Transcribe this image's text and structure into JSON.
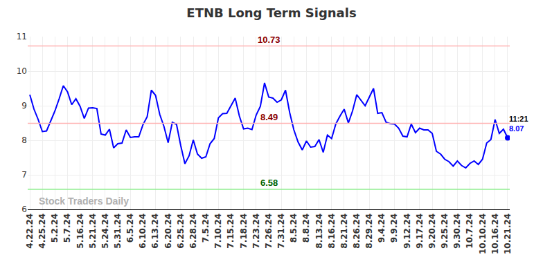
{
  "chart_data": {
    "type": "line",
    "title": "ETNB Long Term Signals",
    "color": "#0000ff",
    "grid": true,
    "ylim": [
      6,
      11
    ],
    "yticks": [
      6,
      7,
      8,
      9,
      10,
      11
    ],
    "categories": [
      "4.22.24",
      null,
      null,
      "4.25.24",
      null,
      null,
      "5.2.24",
      null,
      null,
      "5.7.24",
      null,
      null,
      "5.16.24",
      null,
      null,
      "5.21.24",
      null,
      null,
      "5.24.24",
      null,
      null,
      "5.31.24",
      null,
      null,
      "6.5.24",
      null,
      null,
      "6.10.24",
      null,
      null,
      "6.13.24",
      null,
      null,
      "6.20.24",
      null,
      null,
      "6.25.24",
      null,
      null,
      "6.28.24",
      null,
      null,
      "7.5.24",
      null,
      null,
      "7.10.24",
      null,
      null,
      "7.15.24",
      null,
      null,
      "7.18.24",
      null,
      null,
      "7.23.24",
      null,
      null,
      "7.26.24",
      null,
      null,
      "7.31.24",
      null,
      null,
      "8.5.24",
      null,
      null,
      "8.8.24",
      null,
      null,
      "8.13.24",
      null,
      null,
      "8.16.24",
      null,
      null,
      "8.21.24",
      null,
      null,
      "8.26.24",
      null,
      null,
      "8.29.24",
      null,
      null,
      "9.4.24",
      null,
      null,
      "9.9.24",
      null,
      null,
      "9.12.24",
      null,
      null,
      "9.17.24",
      null,
      null,
      "9.20.24",
      null,
      null,
      "9.25.24",
      null,
      null,
      "9.30.24",
      null,
      null,
      "10.7.24",
      null,
      null,
      "10.10.24",
      null,
      null,
      "10.16.24",
      null,
      null,
      "10.21.24"
    ],
    "values": [
      9.32,
      8.9,
      8.6,
      8.25,
      8.27,
      8.55,
      8.85,
      9.2,
      9.58,
      9.4,
      9.03,
      9.2,
      8.98,
      8.63,
      8.93,
      8.94,
      8.92,
      8.18,
      8.15,
      8.32,
      7.78,
      7.9,
      7.92,
      8.3,
      8.08,
      8.1,
      8.1,
      8.45,
      8.68,
      9.45,
      9.3,
      8.75,
      8.4,
      7.93,
      8.52,
      8.46,
      7.85,
      7.32,
      7.55,
      8.01,
      7.6,
      7.48,
      7.52,
      7.9,
      8.05,
      8.65,
      8.77,
      8.78,
      9.0,
      9.22,
      8.7,
      8.33,
      8.35,
      8.31,
      8.73,
      8.98,
      9.66,
      9.25,
      9.22,
      9.1,
      9.17,
      9.45,
      8.8,
      8.3,
      7.95,
      7.72,
      7.98,
      7.8,
      7.82,
      8.02,
      7.65,
      8.15,
      8.05,
      8.47,
      8.7,
      8.9,
      8.5,
      8.85,
      9.32,
      9.15,
      9.0,
      9.25,
      9.5,
      8.78,
      8.8,
      8.52,
      8.48,
      8.47,
      8.35,
      8.12,
      8.1,
      8.47,
      8.22,
      8.35,
      8.3,
      8.3,
      8.2,
      7.68,
      7.6,
      7.45,
      7.38,
      7.25,
      7.4,
      7.27,
      7.2,
      7.33,
      7.4,
      7.3,
      7.45,
      7.92,
      8.02,
      8.6,
      8.2,
      8.32,
      8.07
    ],
    "reference_lines": [
      {
        "value": 10.73,
        "color": "#ffb3b3",
        "label_color": "#8b0000"
      },
      {
        "value": 8.49,
        "color": "#ffb3b3",
        "label_color": "#8b0000"
      },
      {
        "value": 6.58,
        "color": "#90ee90",
        "label_color": "#006400"
      }
    ],
    "last_point": {
      "time": "11:21",
      "value": 8.07
    },
    "watermark": "Stock Traders Daily"
  }
}
